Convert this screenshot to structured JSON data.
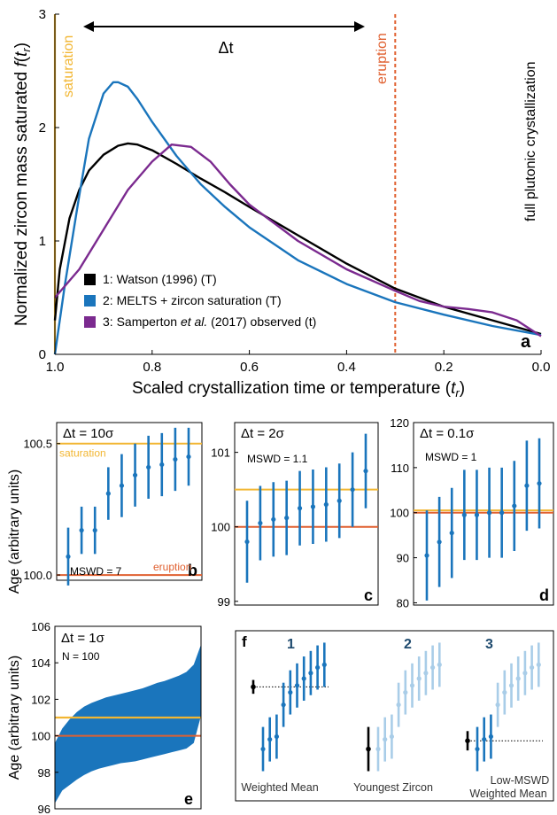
{
  "figure": {
    "background": "#ffffff"
  },
  "colors": {
    "black": "#000000",
    "blue": "#1a75bc",
    "purple": "#7b2a8f",
    "yellow": "#f2b632",
    "orange": "#e06030",
    "lightblue": "#a9cde8"
  },
  "chart_data": [
    {
      "id": "a",
      "type": "line",
      "panel_label": "a",
      "xlabel": "Scaled crystallization time or temperature (t",
      "xlabel_sub": "r",
      "xlabel_end": ")",
      "ylabel": "Normalized zircon mass saturated f(t",
      "ylabel_sub": "r",
      "ylabel_end": ")",
      "xlim": [
        1.0,
        0.0
      ],
      "ylim": [
        0,
        3
      ],
      "xticks": [
        "1.0",
        "0.8",
        "0.6",
        "0.4",
        "0.2",
        "0.0"
      ],
      "xtick_values": [
        1.0,
        0.8,
        0.6,
        0.4,
        0.2,
        0.0
      ],
      "yticks": [
        "0",
        "1",
        "2",
        "3"
      ],
      "ytick_values": [
        0,
        1,
        2,
        3
      ],
      "annotations": {
        "saturation": "saturation",
        "eruption": "eruption",
        "full": "full plutonic crystallization",
        "delta": "Δt"
      },
      "saturation_x": 1.0,
      "eruption_x": 0.3,
      "legend_position": "lower-left",
      "series": [
        {
          "name": "1: Watson (1996) (T)",
          "color": "#000000",
          "x": [
            1.0,
            0.99,
            0.97,
            0.95,
            0.93,
            0.9,
            0.87,
            0.85,
            0.83,
            0.8,
            0.75,
            0.7,
            0.65,
            0.6,
            0.5,
            0.4,
            0.3,
            0.2,
            0.1,
            0.0
          ],
          "y": [
            0.3,
            0.75,
            1.2,
            1.45,
            1.62,
            1.76,
            1.84,
            1.86,
            1.85,
            1.8,
            1.68,
            1.55,
            1.43,
            1.3,
            1.05,
            0.8,
            0.58,
            0.42,
            0.3,
            0.18
          ]
        },
        {
          "name": "2: MELTS + zircon saturation (T)",
          "color": "#1a75bc",
          "x": [
            1.0,
            0.98,
            0.95,
            0.93,
            0.9,
            0.88,
            0.87,
            0.85,
            0.83,
            0.8,
            0.75,
            0.7,
            0.65,
            0.6,
            0.5,
            0.4,
            0.3,
            0.2,
            0.1,
            0.0
          ],
          "y": [
            0.0,
            0.6,
            1.4,
            1.9,
            2.3,
            2.4,
            2.4,
            2.36,
            2.25,
            2.05,
            1.75,
            1.5,
            1.3,
            1.12,
            0.83,
            0.62,
            0.46,
            0.35,
            0.25,
            0.17
          ]
        },
        {
          "name": "3: Samperton et al. (2017) observed (t)",
          "name_plain": "3: Samperton ",
          "name_italic": "et al.",
          "name_rest": " (2017) observed (t)",
          "color": "#7b2a8f",
          "x": [
            1.0,
            0.95,
            0.9,
            0.85,
            0.8,
            0.76,
            0.72,
            0.68,
            0.64,
            0.6,
            0.5,
            0.4,
            0.3,
            0.25,
            0.2,
            0.15,
            0.1,
            0.05,
            0.0
          ],
          "y": [
            0.5,
            0.75,
            1.1,
            1.45,
            1.7,
            1.85,
            1.83,
            1.7,
            1.5,
            1.32,
            1.0,
            0.75,
            0.56,
            0.47,
            0.42,
            0.4,
            0.37,
            0.3,
            0.16
          ]
        }
      ]
    },
    {
      "id": "b",
      "type": "errorbar",
      "panel_label": "b",
      "title": "Δt = 10σ",
      "stat": "MSWD = 7",
      "ylabel": "Age (arbitrary units)",
      "ylim": [
        99.98,
        100.58
      ],
      "yticks": [
        "100.0",
        "100.5"
      ],
      "ytick_values": [
        100.0,
        100.5
      ],
      "saturation": 100.5,
      "eruption": 100.0,
      "saturation_label": "saturation",
      "eruption_label": "eruption",
      "points": [
        {
          "y": 100.07,
          "err": 0.11
        },
        {
          "y": 100.17,
          "err": 0.09
        },
        {
          "y": 100.17,
          "err": 0.09
        },
        {
          "y": 100.31,
          "err": 0.1
        },
        {
          "y": 100.34,
          "err": 0.12
        },
        {
          "y": 100.38,
          "err": 0.12
        },
        {
          "y": 100.41,
          "err": 0.12
        },
        {
          "y": 100.42,
          "err": 0.12
        },
        {
          "y": 100.44,
          "err": 0.12
        },
        {
          "y": 100.45,
          "err": 0.11
        }
      ]
    },
    {
      "id": "c",
      "type": "errorbar",
      "panel_label": "c",
      "title": "Δt = 2σ",
      "stat": "MSWD = 1.1",
      "ylim": [
        98.95,
        101.4
      ],
      "yticks": [
        "99",
        "100",
        "101"
      ],
      "ytick_values": [
        99,
        100,
        101
      ],
      "saturation": 100.5,
      "eruption": 100.0,
      "points": [
        {
          "y": 99.8,
          "err": 0.55
        },
        {
          "y": 100.05,
          "err": 0.5
        },
        {
          "y": 100.1,
          "err": 0.5
        },
        {
          "y": 100.12,
          "err": 0.5
        },
        {
          "y": 100.25,
          "err": 0.5
        },
        {
          "y": 100.27,
          "err": 0.5
        },
        {
          "y": 100.3,
          "err": 0.5
        },
        {
          "y": 100.35,
          "err": 0.5
        },
        {
          "y": 100.5,
          "err": 0.5
        },
        {
          "y": 100.75,
          "err": 0.5
        }
      ]
    },
    {
      "id": "d",
      "type": "errorbar",
      "panel_label": "d",
      "title": "Δt = 0.1σ",
      "stat": "MSWD = 1",
      "ylim": [
        79.5,
        120
      ],
      "yticks": [
        "80",
        "90",
        "100",
        "110",
        "120"
      ],
      "ytick_values": [
        80,
        90,
        100,
        110,
        120
      ],
      "saturation": 100.5,
      "eruption": 100.0,
      "points": [
        {
          "y": 90.5,
          "err": 10.0
        },
        {
          "y": 93.5,
          "err": 10.0
        },
        {
          "y": 95.5,
          "err": 10.0
        },
        {
          "y": 99.5,
          "err": 10.0
        },
        {
          "y": 99.5,
          "err": 10.0
        },
        {
          "y": 100.0,
          "err": 10.0
        },
        {
          "y": 100.0,
          "err": 10.0
        },
        {
          "y": 101.5,
          "err": 10.0
        },
        {
          "y": 106.0,
          "err": 10.0
        },
        {
          "y": 106.5,
          "err": 10.0
        }
      ]
    },
    {
      "id": "e",
      "type": "area",
      "panel_label": "e",
      "title": "Δt = 1σ",
      "stat": "N = 100",
      "ylabel": "Age (arbitrary units)",
      "ylim": [
        96,
        106
      ],
      "yticks": [
        "96",
        "98",
        "100",
        "102",
        "104",
        "106"
      ],
      "ytick_values": [
        96,
        98,
        100,
        102,
        104,
        106
      ],
      "saturation": 101.0,
      "eruption": 100.0,
      "lower": [
        96.3,
        97.0,
        97.3,
        97.6,
        97.85,
        98.05,
        98.2,
        98.3,
        98.4,
        98.5,
        98.55,
        98.6,
        98.7,
        98.8,
        98.9,
        99.0,
        99.1,
        99.2,
        99.3,
        99.6,
        101.1
      ],
      "upper": [
        99.6,
        100.4,
        100.9,
        101.3,
        101.6,
        101.8,
        101.95,
        102.1,
        102.2,
        102.3,
        102.4,
        102.5,
        102.6,
        102.75,
        102.9,
        103.0,
        103.15,
        103.3,
        103.5,
        103.9,
        105.0
      ]
    },
    {
      "id": "f",
      "type": "errorbar",
      "panel_label": "f",
      "ylim": [
        0,
        10
      ],
      "groups": [
        {
          "number": "1",
          "label": "Weighted Mean",
          "label2": "",
          "estimate": {
            "y": 6.9,
            "err": 0.5
          },
          "dotted_y": 6.9,
          "highlight": "all",
          "points": [
            {
              "y": 2.4,
              "err": 1.6
            },
            {
              "y": 3.1,
              "err": 1.6
            },
            {
              "y": 3.3,
              "err": 1.6
            },
            {
              "y": 5.6,
              "err": 1.6
            },
            {
              "y": 6.5,
              "err": 1.6
            },
            {
              "y": 7.0,
              "err": 1.6
            },
            {
              "y": 7.5,
              "err": 1.6
            },
            {
              "y": 7.9,
              "err": 1.6
            },
            {
              "y": 8.3,
              "err": 1.6
            },
            {
              "y": 8.5,
              "err": 1.6
            }
          ]
        },
        {
          "number": "2",
          "label": "Youngest Zircon",
          "label2": "",
          "estimate": {
            "y": 2.4,
            "err": 1.6
          },
          "dotted_y": null,
          "highlight": "none",
          "points": [
            {
              "y": 2.4,
              "err": 1.6
            },
            {
              "y": 3.1,
              "err": 1.6
            },
            {
              "y": 3.3,
              "err": 1.6
            },
            {
              "y": 5.6,
              "err": 1.6
            },
            {
              "y": 6.5,
              "err": 1.6
            },
            {
              "y": 7.0,
              "err": 1.6
            },
            {
              "y": 7.5,
              "err": 1.6
            },
            {
              "y": 7.9,
              "err": 1.6
            },
            {
              "y": 8.3,
              "err": 1.6
            },
            {
              "y": 8.5,
              "err": 1.6
            }
          ]
        },
        {
          "number": "3",
          "label": "Low-MSWD",
          "label2": "Weighted Mean",
          "estimate": {
            "y": 3.0,
            "err": 0.7
          },
          "dotted_y": 3.0,
          "highlight": "first3",
          "points": [
            {
              "y": 2.4,
              "err": 1.6
            },
            {
              "y": 3.1,
              "err": 1.6
            },
            {
              "y": 3.3,
              "err": 1.6
            },
            {
              "y": 5.6,
              "err": 1.6
            },
            {
              "y": 6.5,
              "err": 1.6
            },
            {
              "y": 7.0,
              "err": 1.6
            },
            {
              "y": 7.5,
              "err": 1.6
            },
            {
              "y": 7.9,
              "err": 1.6
            },
            {
              "y": 8.3,
              "err": 1.6
            },
            {
              "y": 8.5,
              "err": 1.6
            }
          ]
        }
      ]
    }
  ]
}
